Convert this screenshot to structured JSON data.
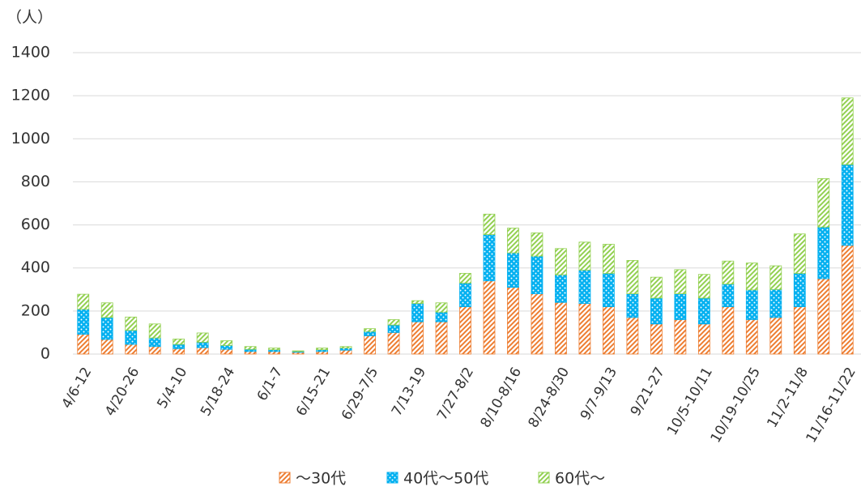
{
  "chart_data": {
    "type": "stacked_bar",
    "y_label": "（人）",
    "categories": [
      "4/6-12",
      null,
      "4/20-26",
      null,
      "5/4-10",
      null,
      "5/18-24",
      null,
      "6/1-7",
      null,
      "6/15-21",
      null,
      "6/29-7/5",
      null,
      "7/13-19",
      null,
      "7/27-8/2",
      null,
      "8/10-8/16",
      null,
      "8/24-8/30",
      null,
      "9/7-9/13",
      null,
      "9/21-27",
      null,
      "10/5-10/11",
      null,
      "10/19-10/25",
      null,
      "11/2-11/8",
      null,
      "11/16-11/22"
    ],
    "series": [
      {
        "name": "～30代",
        "color": "#ed7d31",
        "pattern": "hatch",
        "values": [
          92,
          68,
          45,
          35,
          25,
          30,
          22,
          12,
          12,
          8,
          12,
          18,
          85,
          100,
          150,
          150,
          220,
          340,
          310,
          280,
          240,
          235,
          220,
          170,
          140,
          160,
          140,
          220,
          160,
          170,
          220,
          350,
          505
        ]
      },
      {
        "name": "40代～50代",
        "color": "#00b0f0",
        "pattern": "dots",
        "values": [
          116,
          102,
          65,
          40,
          20,
          25,
          18,
          10,
          8,
          4,
          8,
          10,
          20,
          35,
          85,
          45,
          110,
          215,
          160,
          175,
          128,
          155,
          155,
          110,
          120,
          120,
          120,
          105,
          138,
          130,
          155,
          240,
          375
        ]
      },
      {
        "name": "60代～",
        "color": "#92d050",
        "pattern": "hatch",
        "values": [
          70,
          68,
          62,
          65,
          25,
          43,
          22,
          13,
          8,
          3,
          8,
          7,
          13,
          25,
          13,
          43,
          45,
          95,
          115,
          108,
          122,
          130,
          135,
          155,
          97,
          112,
          110,
          107,
          125,
          110,
          183,
          225,
          310
        ]
      }
    ],
    "ylim": [
      0,
      1400
    ],
    "yticks": [
      0,
      200,
      400,
      600,
      800,
      1000,
      1200,
      1400
    ],
    "grid": true
  }
}
